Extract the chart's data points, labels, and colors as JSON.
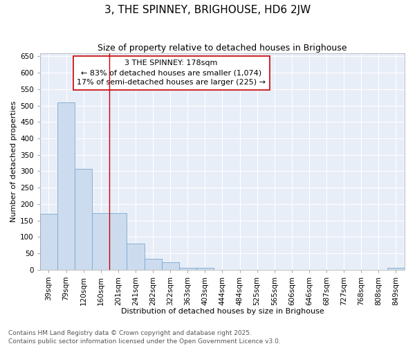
{
  "title": "3, THE SPINNEY, BRIGHOUSE, HD6 2JW",
  "subtitle": "Size of property relative to detached houses in Brighouse",
  "xlabel": "Distribution of detached houses by size in Brighouse",
  "ylabel": "Number of detached properties",
  "bar_color": "#ccdcee",
  "bar_edge_color": "#7ba7d0",
  "background_color": "#e8eef8",
  "grid_color": "#ffffff",
  "fig_background": "#ffffff",
  "categories": [
    "39sqm",
    "79sqm",
    "120sqm",
    "160sqm",
    "201sqm",
    "241sqm",
    "282sqm",
    "322sqm",
    "363sqm",
    "403sqm",
    "444sqm",
    "484sqm",
    "525sqm",
    "565sqm",
    "606sqm",
    "646sqm",
    "687sqm",
    "727sqm",
    "768sqm",
    "808sqm",
    "849sqm"
  ],
  "values": [
    170,
    510,
    308,
    172,
    172,
    80,
    33,
    22,
    5,
    5,
    0,
    0,
    0,
    0,
    0,
    0,
    0,
    0,
    0,
    0,
    5
  ],
  "ylim": [
    0,
    660
  ],
  "yticks": [
    0,
    50,
    100,
    150,
    200,
    250,
    300,
    350,
    400,
    450,
    500,
    550,
    600,
    650
  ],
  "vline_x": 3.5,
  "vline_color": "#cc0000",
  "annotation_line1": "3 THE SPINNEY: 178sqm",
  "annotation_line2": "← 83% of detached houses are smaller (1,074)",
  "annotation_line3": "17% of semi-detached houses are larger (225) →",
  "box_facecolor": "#ffffff",
  "box_edgecolor": "#cc0000",
  "title_fontsize": 11,
  "subtitle_fontsize": 9,
  "xlabel_fontsize": 8,
  "ylabel_fontsize": 8,
  "tick_fontsize": 7.5,
  "annot_fontsize": 8,
  "footer_text": "Contains HM Land Registry data © Crown copyright and database right 2025.\nContains public sector information licensed under the Open Government Licence v3.0.",
  "footer_fontsize": 6.5
}
